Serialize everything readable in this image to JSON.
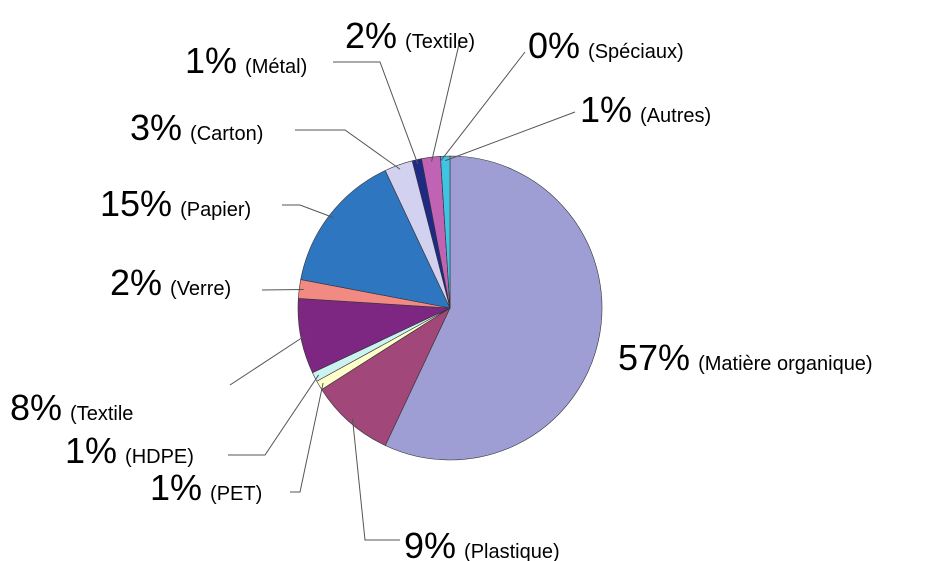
{
  "chart_data": {
    "type": "pie",
    "categories": [
      "(Matière organique)",
      "(Plastique)",
      "(PET)",
      "(HDPE)",
      "(Textile",
      "(Verre)",
      "(Papier)",
      "(Carton)",
      "(Métal)",
      "(Textile)",
      "(Spéciaux)",
      "(Autres)"
    ],
    "values": [
      57,
      9,
      1,
      1,
      8,
      2,
      15,
      3,
      1,
      2,
      0,
      1
    ],
    "value_labels": [
      "57%",
      "9%",
      "1%",
      "1%",
      "8%",
      "2%",
      "15%",
      "3%",
      "1%",
      "2%",
      "0%",
      "1%"
    ],
    "colors": [
      "#9e9ed4",
      "#a1477a",
      "#ffffcc",
      "#ccf2f2",
      "#7d2682",
      "#f28a84",
      "#2f76c0",
      "#d2d2f0",
      "#1f2a85",
      "#c163b4",
      "#8080c0",
      "#40c4e4"
    ]
  }
}
